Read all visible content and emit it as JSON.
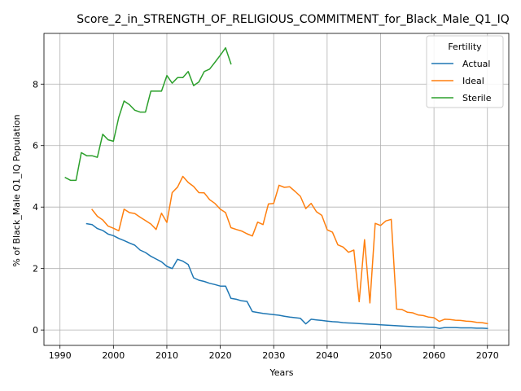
{
  "chart_data": {
    "type": "line",
    "title": "Score_2_in_STRENGTH_OF_RELIGIOUS_COMMITMENT_for_Black_Male_Q1_IQ",
    "xlabel": "Years",
    "ylabel": "% of Black_Male Q1_IQ Population",
    "xlim": [
      1987,
      2074
    ],
    "ylim": [
      -0.5,
      9.65
    ],
    "xticks": [
      1990,
      2000,
      2010,
      2020,
      2030,
      2040,
      2050,
      2060,
      2070
    ],
    "yticks": [
      0,
      2,
      4,
      6,
      8
    ],
    "grid": true,
    "legend": {
      "title": "Fertility",
      "placement": "top-right"
    },
    "series": [
      {
        "name": "Actual",
        "color": "#1f77b4",
        "points": [
          [
            1995,
            3.46
          ],
          [
            1996,
            3.43
          ],
          [
            1997,
            3.3
          ],
          [
            1998,
            3.24
          ],
          [
            1999,
            3.12
          ],
          [
            2000,
            3.07
          ],
          [
            2001,
            2.98
          ],
          [
            2002,
            2.91
          ],
          [
            2003,
            2.83
          ],
          [
            2004,
            2.76
          ],
          [
            2005,
            2.6
          ],
          [
            2006,
            2.52
          ],
          [
            2007,
            2.4
          ],
          [
            2008,
            2.31
          ],
          [
            2009,
            2.22
          ],
          [
            2010,
            2.07
          ],
          [
            2011,
            2.0
          ],
          [
            2012,
            2.3
          ],
          [
            2013,
            2.24
          ],
          [
            2014,
            2.13
          ],
          [
            2015,
            1.7
          ],
          [
            2016,
            1.62
          ],
          [
            2017,
            1.58
          ],
          [
            2018,
            1.52
          ],
          [
            2019,
            1.48
          ],
          [
            2020,
            1.43
          ],
          [
            2021,
            1.43
          ],
          [
            2022,
            1.03
          ],
          [
            2023,
            1.0
          ],
          [
            2024,
            0.95
          ],
          [
            2025,
            0.93
          ],
          [
            2026,
            0.6
          ],
          [
            2027,
            0.57
          ],
          [
            2028,
            0.54
          ],
          [
            2029,
            0.52
          ],
          [
            2030,
            0.5
          ],
          [
            2031,
            0.48
          ],
          [
            2032,
            0.45
          ],
          [
            2033,
            0.42
          ],
          [
            2034,
            0.4
          ],
          [
            2035,
            0.38
          ],
          [
            2036,
            0.2
          ],
          [
            2037,
            0.35
          ],
          [
            2038,
            0.33
          ],
          [
            2039,
            0.31
          ],
          [
            2040,
            0.29
          ],
          [
            2041,
            0.27
          ],
          [
            2042,
            0.26
          ],
          [
            2043,
            0.24
          ],
          [
            2044,
            0.23
          ],
          [
            2045,
            0.22
          ],
          [
            2046,
            0.21
          ],
          [
            2047,
            0.2
          ],
          [
            2048,
            0.19
          ],
          [
            2049,
            0.18
          ],
          [
            2050,
            0.17
          ],
          [
            2051,
            0.16
          ],
          [
            2052,
            0.15
          ],
          [
            2053,
            0.14
          ],
          [
            2054,
            0.13
          ],
          [
            2055,
            0.12
          ],
          [
            2056,
            0.11
          ],
          [
            2057,
            0.1
          ],
          [
            2058,
            0.1
          ],
          [
            2059,
            0.09
          ],
          [
            2060,
            0.09
          ],
          [
            2061,
            0.05
          ],
          [
            2062,
            0.08
          ],
          [
            2063,
            0.08
          ],
          [
            2064,
            0.08
          ],
          [
            2065,
            0.07
          ],
          [
            2066,
            0.07
          ],
          [
            2067,
            0.07
          ],
          [
            2068,
            0.06
          ],
          [
            2069,
            0.06
          ],
          [
            2070,
            0.05
          ]
        ]
      },
      {
        "name": "Ideal",
        "color": "#ff7f0e",
        "points": [
          [
            1996,
            3.92
          ],
          [
            1997,
            3.7
          ],
          [
            1998,
            3.58
          ],
          [
            1999,
            3.38
          ],
          [
            2000,
            3.31
          ],
          [
            2001,
            3.23
          ],
          [
            2002,
            3.93
          ],
          [
            2003,
            3.82
          ],
          [
            2004,
            3.79
          ],
          [
            2005,
            3.67
          ],
          [
            2006,
            3.56
          ],
          [
            2007,
            3.45
          ],
          [
            2008,
            3.27
          ],
          [
            2009,
            3.8
          ],
          [
            2010,
            3.5
          ],
          [
            2011,
            4.47
          ],
          [
            2012,
            4.65
          ],
          [
            2013,
            5.0
          ],
          [
            2014,
            4.8
          ],
          [
            2015,
            4.67
          ],
          [
            2016,
            4.47
          ],
          [
            2017,
            4.46
          ],
          [
            2018,
            4.24
          ],
          [
            2019,
            4.12
          ],
          [
            2020,
            3.93
          ],
          [
            2021,
            3.82
          ],
          [
            2022,
            3.33
          ],
          [
            2023,
            3.27
          ],
          [
            2024,
            3.22
          ],
          [
            2025,
            3.13
          ],
          [
            2026,
            3.06
          ],
          [
            2027,
            3.51
          ],
          [
            2028,
            3.43
          ],
          [
            2029,
            4.1
          ],
          [
            2030,
            4.12
          ],
          [
            2031,
            4.71
          ],
          [
            2032,
            4.64
          ],
          [
            2033,
            4.66
          ],
          [
            2034,
            4.51
          ],
          [
            2035,
            4.35
          ],
          [
            2036,
            3.95
          ],
          [
            2037,
            4.12
          ],
          [
            2038,
            3.85
          ],
          [
            2039,
            3.73
          ],
          [
            2040,
            3.26
          ],
          [
            2041,
            3.18
          ],
          [
            2042,
            2.77
          ],
          [
            2043,
            2.7
          ],
          [
            2044,
            2.53
          ],
          [
            2045,
            2.6
          ],
          [
            2046,
            0.92
          ],
          [
            2047,
            2.94
          ],
          [
            2048,
            0.88
          ],
          [
            2049,
            3.47
          ],
          [
            2050,
            3.4
          ],
          [
            2051,
            3.55
          ],
          [
            2052,
            3.6
          ],
          [
            2053,
            0.68
          ],
          [
            2054,
            0.67
          ],
          [
            2055,
            0.58
          ],
          [
            2056,
            0.56
          ],
          [
            2057,
            0.49
          ],
          [
            2058,
            0.47
          ],
          [
            2059,
            0.42
          ],
          [
            2060,
            0.4
          ],
          [
            2061,
            0.28
          ],
          [
            2062,
            0.35
          ],
          [
            2063,
            0.34
          ],
          [
            2064,
            0.32
          ],
          [
            2065,
            0.31
          ],
          [
            2066,
            0.29
          ],
          [
            2067,
            0.28
          ],
          [
            2068,
            0.25
          ],
          [
            2069,
            0.24
          ],
          [
            2070,
            0.21
          ]
        ]
      },
      {
        "name": "Sterile",
        "color": "#2ca02c",
        "points": [
          [
            1991,
            4.96
          ],
          [
            1992,
            4.87
          ],
          [
            1993,
            4.87
          ],
          [
            1994,
            5.77
          ],
          [
            1995,
            5.67
          ],
          [
            1996,
            5.67
          ],
          [
            1997,
            5.62
          ],
          [
            1998,
            6.37
          ],
          [
            1999,
            6.19
          ],
          [
            2000,
            6.14
          ],
          [
            2001,
            6.92
          ],
          [
            2002,
            7.45
          ],
          [
            2003,
            7.33
          ],
          [
            2004,
            7.15
          ],
          [
            2005,
            7.09
          ],
          [
            2006,
            7.09
          ],
          [
            2007,
            7.77
          ],
          [
            2008,
            7.77
          ],
          [
            2009,
            7.77
          ],
          [
            2010,
            8.28
          ],
          [
            2011,
            8.03
          ],
          [
            2012,
            8.21
          ],
          [
            2013,
            8.21
          ],
          [
            2014,
            8.41
          ],
          [
            2015,
            7.95
          ],
          [
            2016,
            8.07
          ],
          [
            2017,
            8.41
          ],
          [
            2018,
            8.49
          ],
          [
            2019,
            8.71
          ],
          [
            2020,
            8.94
          ],
          [
            2021,
            9.18
          ],
          [
            2022,
            8.66
          ]
        ]
      }
    ]
  }
}
